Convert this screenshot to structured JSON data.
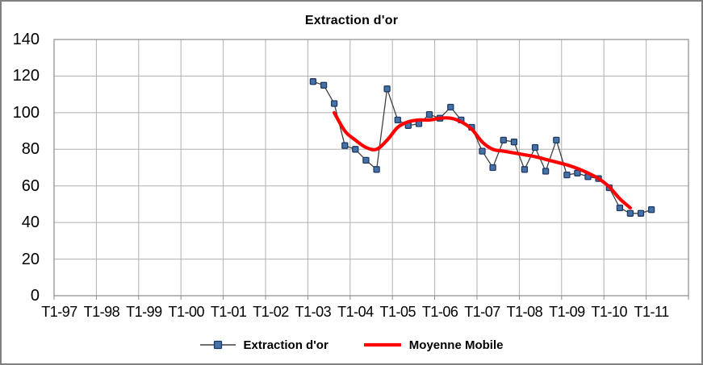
{
  "chart_data": {
    "type": "line",
    "title": "Extraction d'or",
    "grid": true,
    "legend_position": "bottom",
    "x_axis": {
      "tick_labels": [
        "T1-97",
        "T1-98",
        "T1-99",
        "T1-00",
        "T1-01",
        "T1-02",
        "T1-03",
        "T1-04",
        "T1-05",
        "T1-06",
        "T1-07",
        "T1-08",
        "T1-09",
        "T1-10",
        "T1-11"
      ],
      "quarters_per_year": 4,
      "total_quarters": 60
    },
    "y_axis": {
      "min": 0,
      "max": 140,
      "step": 20,
      "tick_labels": [
        "140",
        "120",
        "100",
        "80",
        "60",
        "40",
        "20",
        "0"
      ]
    },
    "series": [
      {
        "name": "Extraction d'or",
        "style": "line-with-square-markers",
        "line_color": "#404040",
        "marker_fill": "#4572a7",
        "marker_stroke": "#1f3864",
        "start_quarter": "T1-03",
        "start_index": 24,
        "values": [
          117,
          115,
          105,
          82,
          80,
          74,
          69,
          113,
          96,
          93,
          94,
          99,
          97,
          103,
          96,
          92,
          79,
          70,
          85,
          84,
          69,
          81,
          68,
          85,
          66,
          67,
          65,
          64,
          59,
          48,
          45,
          45,
          47
        ]
      },
      {
        "name": "Moyenne Mobile",
        "style": "smooth-thick-line",
        "line_color": "#fe0000",
        "start_quarter": "T3-03",
        "start_index": 26,
        "values": [
          100,
          90,
          85,
          81,
          80,
          85,
          92,
          95,
          96,
          96,
          97,
          97,
          95,
          91,
          84,
          80,
          79,
          78,
          77,
          76,
          74.5,
          73,
          71.5,
          69.5,
          67,
          64,
          59.5,
          53,
          48
        ]
      }
    ],
    "colors": {
      "grid": "#b0b0b0",
      "plot_border": "#8c8c8c",
      "frame_border": "#7f7f7f",
      "background": "#ffffff",
      "text": "#000000"
    }
  },
  "legend": {
    "items": [
      {
        "label": "Extraction d'or"
      },
      {
        "label": "Moyenne Mobile"
      }
    ]
  }
}
